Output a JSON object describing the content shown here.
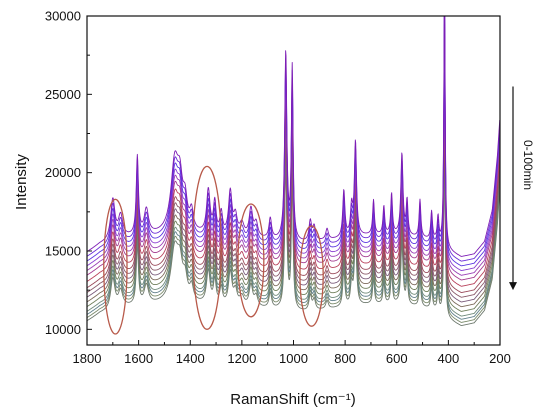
{
  "chart_data": {
    "type": "line",
    "title": "",
    "xlabel": "RamanShift (cm⁻¹)",
    "ylabel": "Intensity",
    "xlim": [
      1800,
      200
    ],
    "ylim": [
      9000,
      30000
    ],
    "x_reversed": true,
    "grid": false,
    "xticks": [
      1800,
      1600,
      1400,
      1200,
      1000,
      800,
      600,
      400,
      200
    ],
    "xtick_labels": [
      "1800",
      "1600",
      "1400",
      "1200",
      "1000",
      "800",
      "600",
      "400",
      "200"
    ],
    "yticks": [
      10000,
      15000,
      20000,
      25000,
      30000
    ],
    "ytick_labels": [
      "10000",
      "15000",
      "20000",
      "25000",
      "30000"
    ],
    "annotation": {
      "text": "0-100min",
      "arrow_direction": "down",
      "arrow_from": 25500,
      "arrow_to": 12500
    },
    "highlight_regions": [
      {
        "center_x": 1690,
        "center_y": 14000,
        "rx": 45,
        "ry": 4300
      },
      {
        "center_x": 1335,
        "center_y": 15200,
        "rx": 55,
        "ry": 5200
      },
      {
        "center_x": 1165,
        "center_y": 14400,
        "rx": 50,
        "ry": 3600
      },
      {
        "center_x": 930,
        "center_y": 13400,
        "rx": 45,
        "ry": 3200
      }
    ],
    "baseline_profile": {
      "x": [
        1800,
        1750,
        1700,
        1650,
        1600,
        1500,
        1400,
        1300,
        1200,
        1100,
        1040,
        1000,
        950,
        900,
        800,
        700,
        600,
        500,
        450,
        400,
        350,
        300,
        260,
        230,
        210,
        200
      ],
      "y": [
        12300,
        12800,
        13000,
        13200,
        13300,
        13400,
        13400,
        13300,
        13200,
        13100,
        13000,
        12900,
        12900,
        13000,
        13200,
        13400,
        13400,
        13200,
        13000,
        12400,
        12000,
        12200,
        13000,
        15000,
        18500,
        21000
      ]
    },
    "series_offsets_top_to_bottom": [
      2600,
      2300,
      2000,
      1700,
      1400,
      1100,
      700,
      300,
      0,
      -300,
      -600,
      -900,
      -1200,
      -1400,
      -1600,
      -1800
    ],
    "peaks": [
      {
        "x": 1700,
        "height": 2600,
        "width": 10
      },
      {
        "x": 1670,
        "height": 1400,
        "width": 10
      },
      {
        "x": 1605,
        "height": 5000,
        "width": 5
      },
      {
        "x": 1570,
        "height": 1600,
        "width": 10
      },
      {
        "x": 1460,
        "height": 4500,
        "width": 18
      },
      {
        "x": 1440,
        "height": 2500,
        "width": 12
      },
      {
        "x": 1420,
        "height": 1700,
        "width": 10
      },
      {
        "x": 1395,
        "height": 1200,
        "width": 8
      },
      {
        "x": 1330,
        "height": 2800,
        "width": 8
      },
      {
        "x": 1305,
        "height": 2000,
        "width": 6
      },
      {
        "x": 1280,
        "height": 1400,
        "width": 6
      },
      {
        "x": 1245,
        "height": 2800,
        "width": 8
      },
      {
        "x": 1225,
        "height": 1200,
        "width": 8
      },
      {
        "x": 1200,
        "height": 800,
        "width": 10
      },
      {
        "x": 1165,
        "height": 1800,
        "width": 8
      },
      {
        "x": 1145,
        "height": 900,
        "width": 8
      },
      {
        "x": 1090,
        "height": 1300,
        "width": 6
      },
      {
        "x": 1030,
        "height": 12000,
        "width": 5
      },
      {
        "x": 1005,
        "height": 11000,
        "width": 4
      },
      {
        "x": 935,
        "height": 1300,
        "width": 6
      },
      {
        "x": 920,
        "height": 900,
        "width": 6
      },
      {
        "x": 870,
        "height": 700,
        "width": 6
      },
      {
        "x": 805,
        "height": 3000,
        "width": 5
      },
      {
        "x": 775,
        "height": 1800,
        "width": 5
      },
      {
        "x": 760,
        "height": 6000,
        "width": 5
      },
      {
        "x": 690,
        "height": 2200,
        "width": 4
      },
      {
        "x": 650,
        "height": 1800,
        "width": 4
      },
      {
        "x": 620,
        "height": 2600,
        "width": 4
      },
      {
        "x": 580,
        "height": 5200,
        "width": 5
      },
      {
        "x": 560,
        "height": 2200,
        "width": 4
      },
      {
        "x": 510,
        "height": 2400,
        "width": 4
      },
      {
        "x": 465,
        "height": 1800,
        "width": 4
      },
      {
        "x": 440,
        "height": 1600,
        "width": 4
      },
      {
        "x": 415,
        "height": 17000,
        "width": 3
      }
    ],
    "series_colors": [
      "#7d1db5",
      "#6a2bd6",
      "#5b35e0",
      "#8a3fd0",
      "#9a3fb5",
      "#a33b8f",
      "#b8405a",
      "#9a4a5a",
      "#8a5a6a",
      "#7a5a7a",
      "#7c6a5a",
      "#6f7f5a",
      "#6f8a7a",
      "#5f7f8a",
      "#7a8a6a",
      "#6f7a6f"
    ],
    "highlight_color": "#b85a4a",
    "axis_color": "#111111"
  }
}
